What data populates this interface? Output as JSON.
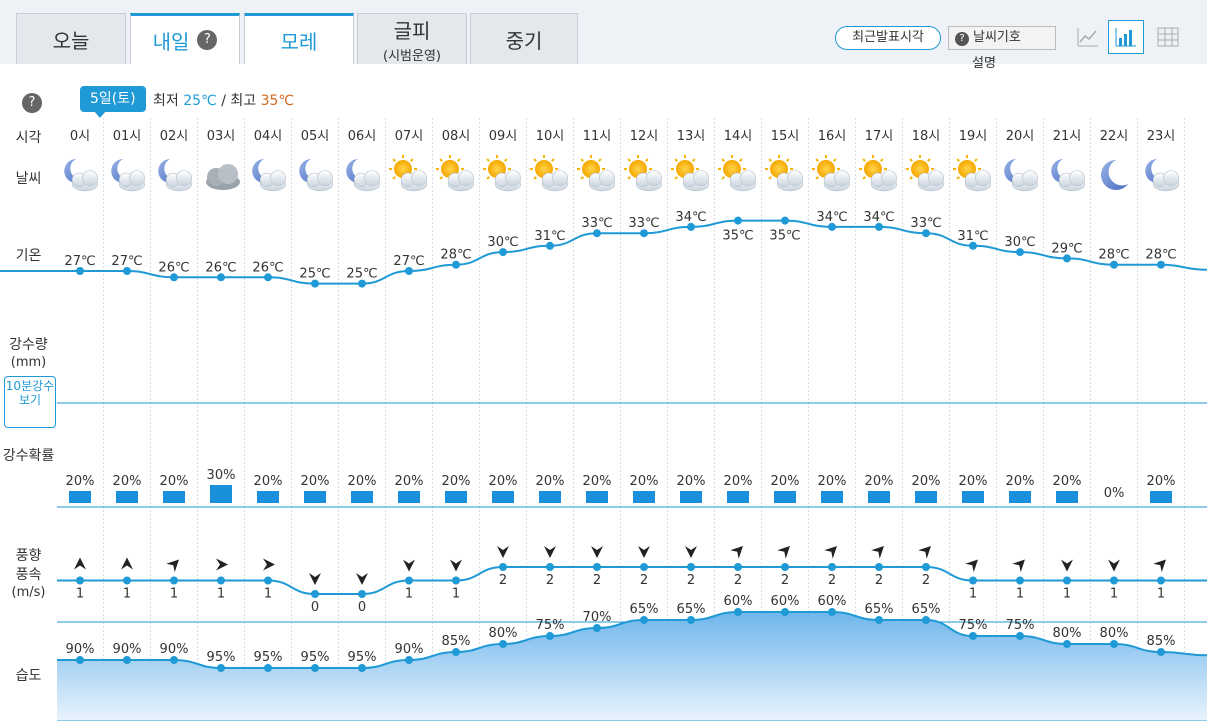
{
  "tabs": [
    {
      "label": "오늘",
      "sub": "",
      "active": false
    },
    {
      "label": "내일",
      "sub": "",
      "active": true,
      "help": "?"
    },
    {
      "label": "모레",
      "sub": "",
      "active": true
    },
    {
      "label": "글피",
      "sub": "(시범운영)",
      "active": false
    },
    {
      "label": "중기",
      "sub": "",
      "active": false
    }
  ],
  "toolbar": {
    "recent_label": "최근발표시각",
    "legend_label": "날씨기호",
    "legend_help": "?",
    "legend_sub": "설명",
    "views": [
      "line-chart-icon",
      "bar-chart-icon",
      "table-icon"
    ]
  },
  "date": {
    "badge": "5일(토)",
    "min_label": "최저",
    "min_value": "25℃",
    "sep": "/",
    "max_label": "최고",
    "max_value": "35℃"
  },
  "labels": {
    "help": "?",
    "time": "시각",
    "weather": "날씨",
    "temp": "기온",
    "precip": "강수량",
    "precip_unit": "(mm)",
    "btn_10min": "10분강수보기",
    "prob": "강수확률",
    "wind1": "풍향",
    "wind2": "풍속",
    "wind_unit": "(m/s)",
    "humidity": "습도"
  },
  "colors": {
    "accent": "#1f9ad6",
    "bar": "#1a8fdc",
    "hi": "#d2691e"
  },
  "chart_data": {
    "type": "line",
    "hours": [
      "0시",
      "01시",
      "02시",
      "03시",
      "04시",
      "05시",
      "06시",
      "07시",
      "08시",
      "09시",
      "10시",
      "11시",
      "12시",
      "13시",
      "14시",
      "15시",
      "16시",
      "17시",
      "18시",
      "19시",
      "20시",
      "21시",
      "22시",
      "23시"
    ],
    "weather_icons": [
      "night-partly-cloudy",
      "night-partly-cloudy",
      "night-partly-cloudy",
      "cloudy",
      "night-partly-cloudy",
      "night-partly-cloudy",
      "night-partly-cloudy",
      "sun-partly-cloudy",
      "sun-partly-cloudy",
      "sun-partly-cloudy",
      "sun-partly-cloudy",
      "sun-partly-cloudy",
      "sun-partly-cloudy",
      "sun-partly-cloudy",
      "sun-partly-cloudy",
      "sun-partly-cloudy",
      "sun-partly-cloudy",
      "sun-partly-cloudy",
      "sun-partly-cloudy",
      "sun-partly-cloudy",
      "night-partly-cloudy",
      "night-partly-cloudy",
      "moon",
      "night-partly-cloudy"
    ],
    "temperature": [
      27,
      27,
      26,
      26,
      26,
      25,
      25,
      27,
      28,
      30,
      31,
      33,
      33,
      34,
      35,
      35,
      34,
      34,
      33,
      31,
      30,
      29,
      28,
      28
    ],
    "temp_labels": [
      "27℃",
      "27℃",
      "26℃",
      "26℃",
      "26℃",
      "25℃",
      "25℃",
      "27℃",
      "28℃",
      "30℃",
      "31℃",
      "33℃",
      "33℃",
      "34℃",
      "35℃",
      "35℃",
      "34℃",
      "34℃",
      "33℃",
      "31℃",
      "30℃",
      "29℃",
      "28℃",
      "28℃"
    ],
    "precip_prob": [
      20,
      20,
      20,
      30,
      20,
      20,
      20,
      20,
      20,
      20,
      20,
      20,
      20,
      20,
      20,
      20,
      20,
      20,
      20,
      20,
      20,
      20,
      0,
      20
    ],
    "prob_labels": [
      "20%",
      "20%",
      "20%",
      "30%",
      "20%",
      "20%",
      "20%",
      "20%",
      "20%",
      "20%",
      "20%",
      "20%",
      "20%",
      "20%",
      "20%",
      "20%",
      "20%",
      "20%",
      "20%",
      "20%",
      "20%",
      "20%",
      "0%",
      "20%"
    ],
    "wind_speed": [
      1,
      1,
      1,
      1,
      1,
      0,
      0,
      1,
      1,
      2,
      2,
      2,
      2,
      2,
      2,
      2,
      2,
      2,
      2,
      1,
      1,
      1,
      1,
      1
    ],
    "wind_labels": [
      "1",
      "1",
      "1",
      "1",
      "1",
      "0",
      "0",
      "1",
      "1",
      "2",
      "2",
      "2",
      "2",
      "2",
      "2",
      "2",
      "2",
      "2",
      "2",
      "1",
      "1",
      "1",
      "1",
      "1"
    ],
    "wind_dir_deg": [
      180,
      180,
      225,
      270,
      270,
      0,
      0,
      0,
      0,
      0,
      0,
      0,
      0,
      0,
      225,
      225,
      225,
      225,
      225,
      225,
      225,
      0,
      0,
      225
    ],
    "humidity": [
      90,
      90,
      90,
      95,
      95,
      95,
      95,
      90,
      85,
      80,
      75,
      70,
      65,
      65,
      60,
      60,
      60,
      65,
      65,
      75,
      75,
      80,
      80,
      85
    ],
    "humidity_labels": [
      "90%",
      "90%",
      "90%",
      "95%",
      "95%",
      "95%",
      "95%",
      "90%",
      "85%",
      "80%",
      "75%",
      "70%",
      "65%",
      "65%",
      "60%",
      "60%",
      "60%",
      "65%",
      "65%",
      "75%",
      "75%",
      "80%",
      "80%",
      "85%"
    ]
  }
}
